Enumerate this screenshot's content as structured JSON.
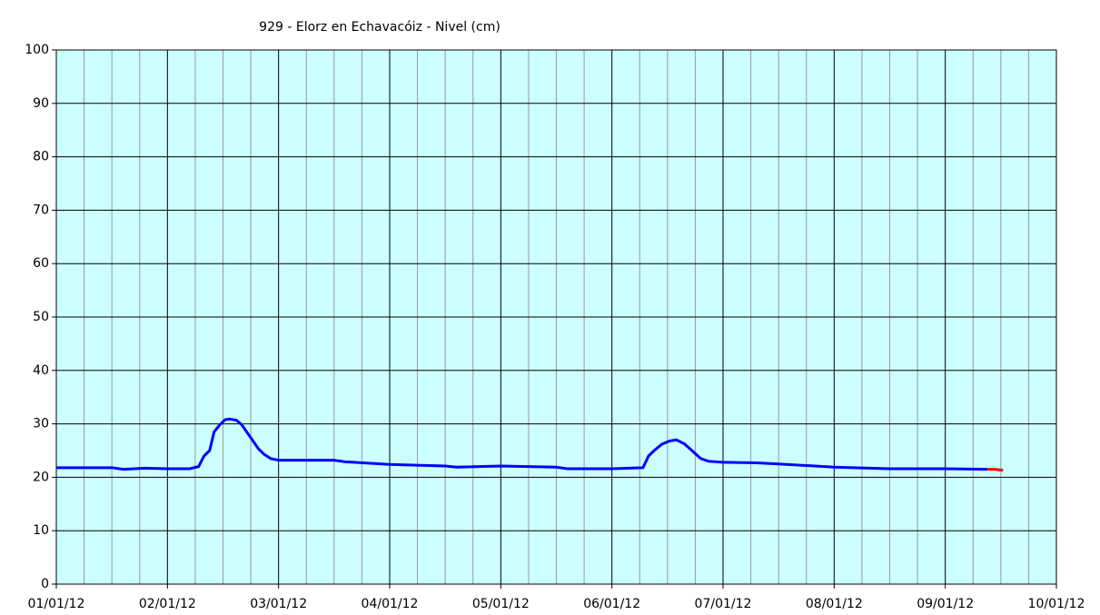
{
  "chart_data": {
    "type": "line",
    "title": "929 - Elorz en Echavacóiz - Nivel (cm)",
    "xlim": [
      0,
      9
    ],
    "xticks": [
      {
        "value": 0,
        "label": "01/01/12"
      },
      {
        "value": 1,
        "label": "02/01/12"
      },
      {
        "value": 2,
        "label": "03/01/12"
      },
      {
        "value": 3,
        "label": "04/01/12"
      },
      {
        "value": 4,
        "label": "05/01/12"
      },
      {
        "value": 5,
        "label": "06/01/12"
      },
      {
        "value": 6,
        "label": "07/01/12"
      },
      {
        "value": 7,
        "label": "08/01/12"
      },
      {
        "value": 8,
        "label": "09/01/12"
      },
      {
        "value": 9,
        "label": "10/01/12"
      }
    ],
    "ylim": [
      0,
      100
    ],
    "yticks": [
      0,
      10,
      20,
      30,
      40,
      50,
      60,
      70,
      80,
      90,
      100
    ],
    "grid": true,
    "background": "#ccffff",
    "series": [
      {
        "color": "#0000ff",
        "x": [
          0,
          0.5,
          0.6,
          0.8,
          1.0,
          1.2,
          1.28,
          1.33,
          1.38,
          1.42,
          1.47,
          1.52,
          1.56,
          1.62,
          1.67,
          1.72,
          1.77,
          1.82,
          1.87,
          1.93,
          2.0,
          2.5,
          2.6,
          3.0,
          3.5,
          3.6,
          4.0,
          4.5,
          4.6,
          5.0,
          5.28,
          5.33,
          5.38,
          5.45,
          5.52,
          5.58,
          5.65,
          5.72,
          5.8,
          5.87,
          6.0,
          6.3,
          6.5,
          7.0,
          7.5,
          8.0,
          8.38
        ],
        "values": [
          21.8,
          21.8,
          21.5,
          21.7,
          21.6,
          21.6,
          22.0,
          24.0,
          25.0,
          28.5,
          29.8,
          30.8,
          30.9,
          30.7,
          29.8,
          28.3,
          26.8,
          25.3,
          24.3,
          23.5,
          23.2,
          23.2,
          22.9,
          22.4,
          22.1,
          21.9,
          22.1,
          21.9,
          21.6,
          21.6,
          21.8,
          24.0,
          25.0,
          26.2,
          26.8,
          27.0,
          26.3,
          25.0,
          23.5,
          23.0,
          22.8,
          22.7,
          22.5,
          21.9,
          21.6,
          21.6,
          21.5
        ]
      },
      {
        "color": "#ff0000",
        "x": [
          8.38,
          8.45,
          8.52
        ],
        "values": [
          21.5,
          21.5,
          21.3
        ]
      }
    ]
  }
}
